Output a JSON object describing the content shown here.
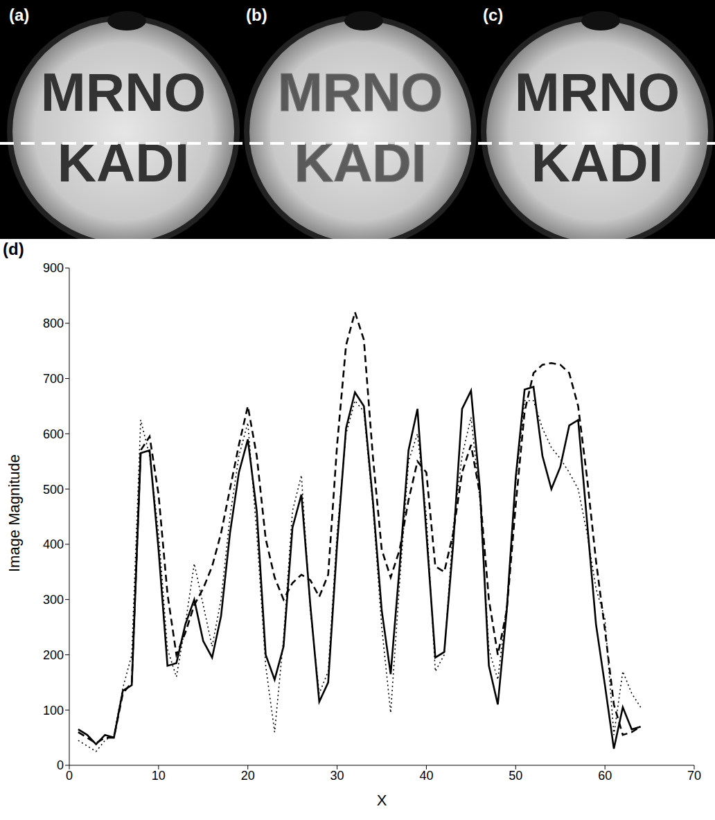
{
  "panels": [
    {
      "label": "(a)",
      "text": [
        "MRNO",
        "KADI"
      ]
    },
    {
      "label": "(b)",
      "text": [
        "MRNO",
        "KADI"
      ]
    },
    {
      "label": "(c)",
      "text": [
        "MRNO",
        "KADI"
      ]
    }
  ],
  "chart_data": {
    "type": "line",
    "panel_label": "(d)",
    "x_label": "X",
    "y_label": "Image Magnitude",
    "xlim": [
      0,
      70
    ],
    "xticks": [
      0,
      10,
      20,
      30,
      40,
      50,
      60,
      70
    ],
    "ylim": [
      0,
      900
    ],
    "yticks": [
      0,
      100,
      200,
      300,
      400,
      500,
      600,
      700,
      800,
      900
    ],
    "grid": false,
    "x": [
      1,
      2,
      3,
      4,
      5,
      6,
      7,
      8,
      9,
      10,
      11,
      12,
      13,
      14,
      15,
      16,
      17,
      18,
      19,
      20,
      21,
      22,
      23,
      24,
      25,
      26,
      27,
      28,
      29,
      30,
      31,
      32,
      33,
      34,
      35,
      36,
      37,
      38,
      39,
      40,
      41,
      42,
      43,
      44,
      45,
      46,
      47,
      48,
      49,
      50,
      51,
      52,
      53,
      54,
      55,
      56,
      57,
      58,
      59,
      60,
      61,
      62,
      63,
      64
    ],
    "series": [
      {
        "color": "#000000",
        "line_style": "solid",
        "values": [
          65,
          55,
          38,
          55,
          50,
          135,
          145,
          565,
          570,
          390,
          180,
          185,
          255,
          300,
          225,
          195,
          270,
          420,
          530,
          590,
          460,
          200,
          155,
          215,
          430,
          490,
          290,
          115,
          150,
          400,
          610,
          675,
          650,
          480,
          280,
          165,
          360,
          570,
          645,
          420,
          195,
          205,
          400,
          645,
          678,
          500,
          180,
          110,
          280,
          520,
          680,
          685,
          560,
          500,
          540,
          615,
          625,
          440,
          255,
          145,
          30,
          105,
          65,
          70
        ]
      },
      {
        "color": "#000000",
        "line_style": "dashed",
        "values": [
          60,
          50,
          40,
          50,
          50,
          130,
          150,
          570,
          595,
          490,
          310,
          200,
          240,
          290,
          320,
          360,
          420,
          500,
          580,
          650,
          560,
          410,
          340,
          300,
          330,
          345,
          335,
          305,
          345,
          580,
          760,
          820,
          770,
          560,
          390,
          340,
          390,
          480,
          550,
          530,
          360,
          350,
          420,
          530,
          580,
          490,
          300,
          200,
          280,
          470,
          640,
          710,
          725,
          728,
          725,
          710,
          650,
          520,
          370,
          245,
          110,
          55,
          60,
          70
        ]
      },
      {
        "color": "#000000",
        "line_style": "dotted",
        "values": [
          45,
          35,
          25,
          45,
          55,
          140,
          200,
          625,
          560,
          420,
          210,
          160,
          255,
          365,
          290,
          215,
          300,
          450,
          560,
          620,
          420,
          180,
          60,
          230,
          460,
          525,
          280,
          130,
          170,
          420,
          600,
          660,
          640,
          470,
          250,
          95,
          330,
          550,
          600,
          450,
          170,
          200,
          430,
          560,
          630,
          480,
          210,
          155,
          290,
          510,
          660,
          660,
          610,
          575,
          555,
          530,
          500,
          420,
          320,
          265,
          55,
          170,
          130,
          105
        ]
      }
    ]
  }
}
